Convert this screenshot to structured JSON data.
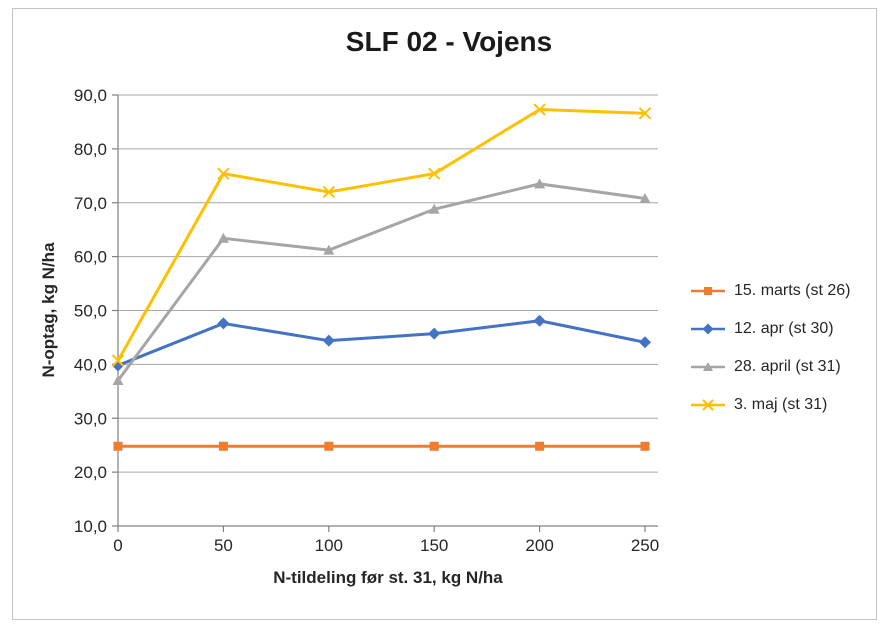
{
  "chart_data": {
    "type": "line",
    "title": "SLF 02 - Vojens",
    "xlabel": "N-tildeling før st. 31, kg N/ha",
    "ylabel": "N-optag, kg N/ha",
    "categories": [
      "0",
      "50",
      "100",
      "150",
      "200",
      "250"
    ],
    "ylim": [
      10,
      90
    ],
    "y_ticks": [
      {
        "value": 90,
        "label": "90,0"
      },
      {
        "value": 80,
        "label": "80,0"
      },
      {
        "value": 70,
        "label": "70,0"
      },
      {
        "value": 60,
        "label": "60,0"
      },
      {
        "value": 50,
        "label": "50,0"
      },
      {
        "value": 40,
        "label": "40,0"
      },
      {
        "value": 30,
        "label": "30,0"
      },
      {
        "value": 20,
        "label": "20,0"
      },
      {
        "value": 10,
        "label": "10,0"
      }
    ],
    "grid": "horizontal-major",
    "legend_position": "right",
    "series": [
      {
        "name": "15. marts (st 26)",
        "marker": "square",
        "color": "#ED7D31",
        "values": [
          24.8,
          24.8,
          24.8,
          24.8,
          24.8,
          24.8
        ]
      },
      {
        "name": "12. apr (st 30)",
        "marker": "diamond",
        "color": "#4472C4",
        "values": [
          39.8,
          47.6,
          44.4,
          45.7,
          48.1,
          44.1
        ]
      },
      {
        "name": "28. april (st 31)",
        "marker": "triangle",
        "color": "#A5A5A5",
        "values": [
          37.0,
          63.4,
          61.2,
          68.8,
          73.5,
          70.8
        ]
      },
      {
        "name": "3. maj (st 31)",
        "marker": "x",
        "color": "#FFC000",
        "values": [
          40.7,
          75.4,
          72.0,
          75.4,
          87.3,
          86.6
        ]
      }
    ],
    "colors": {
      "gridline": "#A6A6A6",
      "axis": "#808080",
      "tick": "#808080",
      "text": "#262626",
      "frame_border": "#C3C3C3",
      "background": "#FFFFFF"
    }
  }
}
